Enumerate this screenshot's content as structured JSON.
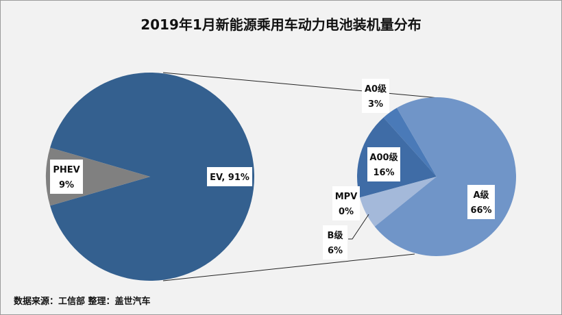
{
  "title": "2019年1月新能源乘用车动力电池装机量分布",
  "source": "数据来源：工信部   整理：盖世汽车",
  "chart_data": [
    {
      "type": "pie",
      "slices": [
        {
          "label": "EV",
          "value": 91,
          "label_text": "EV, 91%",
          "color": "#34608f"
        },
        {
          "label": "PHEV",
          "value": 9,
          "label_text": [
            "PHEV",
            "9%"
          ],
          "color": "#808080"
        }
      ]
    },
    {
      "type": "pie",
      "slices": [
        {
          "label": "A0级",
          "value": 3,
          "label_text": [
            "A0级",
            "3%"
          ],
          "color": "#4a7ab8"
        },
        {
          "label": "A00级",
          "value": 16,
          "label_text": [
            "A00级",
            "16%"
          ],
          "color": "#3f6ca6"
        },
        {
          "label": "MPV",
          "value": 0,
          "label_text": [
            "MPV",
            "0%"
          ],
          "color": "#7b9bc8"
        },
        {
          "label": "B级",
          "value": 6,
          "label_text": [
            "B级",
            "6%"
          ],
          "color": "#a4b9da"
        },
        {
          "label": "A级",
          "value": 66,
          "label_text": [
            "A级",
            "66%"
          ],
          "color": "#7095c8"
        }
      ]
    }
  ]
}
